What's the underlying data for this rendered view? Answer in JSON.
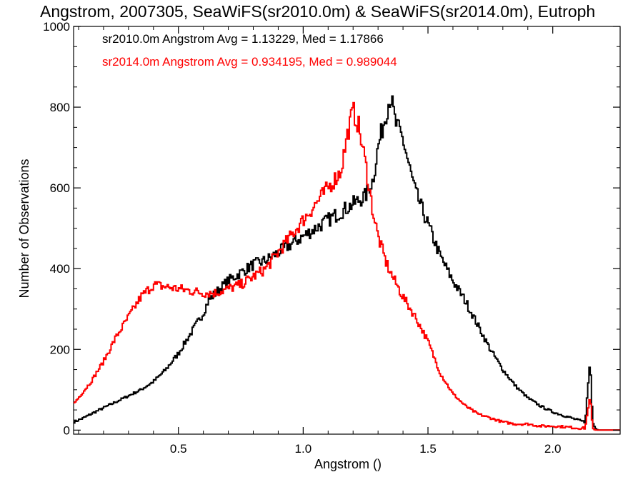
{
  "chart_data": {
    "type": "line",
    "title": "Angstrom, 2007305, SeaWiFS(sr2010.0m) & SeaWiFS(sr2014.0m), Eutroph",
    "xlabel": "Angstrom ()",
    "ylabel": "Number of Observations",
    "xlim": [
      0.08,
      2.27
    ],
    "ylim": [
      -10,
      1000
    ],
    "x_ticks": [
      0.5,
      1.0,
      1.5,
      2.0
    ],
    "x_tick_labels": [
      "0.5",
      "1.0",
      "1.5",
      "2.0"
    ],
    "y_ticks": [
      0,
      200,
      400,
      600,
      800,
      1000
    ],
    "y_tick_labels": [
      "0",
      "200",
      "400",
      "600",
      "800",
      "1000"
    ],
    "step": "histogram",
    "annotations": [
      {
        "text": "sr2010.0m Angstrom Avg = 1.13229, Med = 1.17866",
        "color": "#000000"
      },
      {
        "text": "sr2014.0m Angstrom Avg = 0.934195, Med = 0.989044",
        "color": "#ff0000"
      }
    ],
    "series": [
      {
        "color": "#000000",
        "x": [
          0.08,
          0.1,
          0.12,
          0.15,
          0.2,
          0.25,
          0.3,
          0.35,
          0.4,
          0.45,
          0.5,
          0.55,
          0.6,
          0.62,
          0.65,
          0.7,
          0.75,
          0.8,
          0.85,
          0.9,
          0.95,
          1.0,
          1.05,
          1.1,
          1.15,
          1.2,
          1.25,
          1.28,
          1.3,
          1.33,
          1.35,
          1.37,
          1.4,
          1.43,
          1.45,
          1.5,
          1.55,
          1.6,
          1.65,
          1.7,
          1.75,
          1.8,
          1.85,
          1.9,
          1.95,
          2.0,
          2.05,
          2.1,
          2.13,
          2.15,
          2.16,
          2.17,
          2.18,
          2.25
        ],
        "y": [
          20,
          25,
          30,
          40,
          55,
          70,
          85,
          100,
          120,
          150,
          190,
          240,
          290,
          320,
          340,
          370,
          390,
          410,
          420,
          440,
          460,
          480,
          500,
          520,
          540,
          560,
          580,
          620,
          700,
          780,
          830,
          760,
          720,
          640,
          590,
          510,
          430,
          370,
          320,
          260,
          200,
          150,
          110,
          80,
          60,
          45,
          35,
          25,
          20,
          175,
          20,
          5,
          0,
          0
        ]
      },
      {
        "color": "#ff0000",
        "x": [
          0.08,
          0.1,
          0.15,
          0.2,
          0.25,
          0.3,
          0.35,
          0.4,
          0.45,
          0.5,
          0.55,
          0.6,
          0.65,
          0.7,
          0.75,
          0.8,
          0.85,
          0.9,
          0.95,
          1.0,
          1.05,
          1.1,
          1.15,
          1.18,
          1.2,
          1.22,
          1.25,
          1.28,
          1.3,
          1.33,
          1.35,
          1.4,
          1.45,
          1.5,
          1.55,
          1.6,
          1.65,
          1.7,
          1.75,
          1.8,
          1.85,
          1.9,
          1.95,
          2.0,
          2.05,
          2.1,
          2.13,
          2.15,
          2.16,
          2.17,
          2.25
        ],
        "y": [
          65,
          80,
          120,
          170,
          230,
          280,
          330,
          360,
          355,
          350,
          345,
          340,
          340,
          350,
          360,
          380,
          400,
          440,
          480,
          520,
          560,
          600,
          640,
          740,
          790,
          760,
          660,
          540,
          480,
          420,
          390,
          330,
          280,
          220,
          140,
          90,
          60,
          40,
          30,
          20,
          15,
          15,
          10,
          10,
          8,
          5,
          5,
          85,
          5,
          0,
          0
        ]
      }
    ]
  }
}
